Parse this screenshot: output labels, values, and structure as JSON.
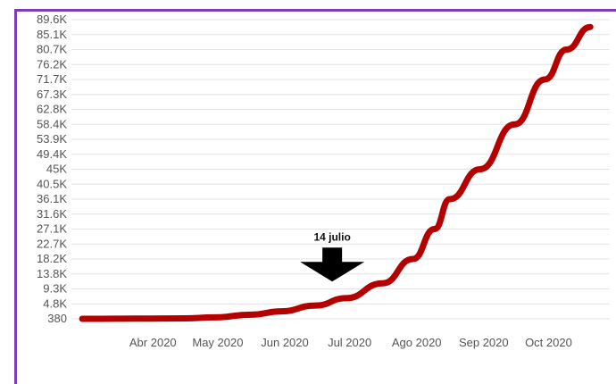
{
  "chart_data": {
    "type": "line",
    "title": "",
    "xlabel": "",
    "ylabel": "",
    "grid": true,
    "legend": "none",
    "y_ticks": [
      "89.6K",
      "85.1K",
      "80.7K",
      "76.2K",
      "71.7K",
      "67.3K",
      "62.8K",
      "58.4K",
      "53.9K",
      "49.4K",
      "45K",
      "40.5K",
      "36.1K",
      "31.6K",
      "27.1K",
      "22.7K",
      "18.2K",
      "13.8K",
      "9.3K",
      "4.8K",
      "380"
    ],
    "y_tick_values": [
      89600,
      85100,
      80700,
      76200,
      71700,
      67300,
      62800,
      58400,
      53900,
      49400,
      45000,
      40500,
      36100,
      31600,
      27100,
      22700,
      18200,
      13800,
      9300,
      4800,
      380
    ],
    "x_ticks": [
      "Abr 2020",
      "May 2020",
      "Jun 2020",
      "Jul 2020",
      "Ago 2020",
      "Sep 2020",
      "Oct 2020"
    ],
    "x_tick_dates": [
      "2020-04-01",
      "2020-05-01",
      "2020-06-01",
      "2020-07-01",
      "2020-08-01",
      "2020-09-01",
      "2020-10-01"
    ],
    "xlim": [
      "2020-03-10",
      "2020-11-14"
    ],
    "ylim": [
      380,
      89600
    ],
    "series": [
      {
        "color": "#b50000",
        "x": [
          "2020-03-15",
          "2020-04-01",
          "2020-04-15",
          "2020-05-01",
          "2020-05-15",
          "2020-06-01",
          "2020-06-15",
          "2020-07-01",
          "2020-07-15",
          "2020-08-01",
          "2020-08-15",
          "2020-08-25",
          "2020-09-01",
          "2020-09-15",
          "2020-10-01",
          "2020-10-15",
          "2020-10-25",
          "2020-11-05"
        ],
        "values": [
          380,
          400,
          450,
          500,
          800,
          1600,
          2600,
          4300,
          6500,
          11000,
          18200,
          27100,
          36100,
          45000,
          58400,
          71700,
          80700,
          87400
        ]
      }
    ],
    "annotations": [
      {
        "text": "14 julio",
        "x": "2020-07-14",
        "y": 4800,
        "marker": "down-arrow"
      }
    ]
  }
}
